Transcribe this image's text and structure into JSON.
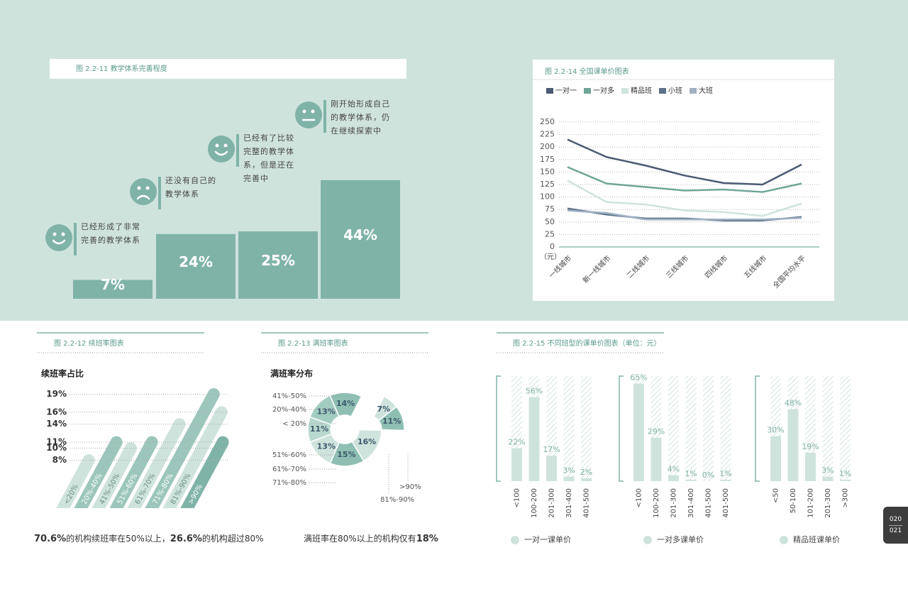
{
  "chart_data": [
    {
      "type": "step-bar",
      "title": "图 2.2-11 教学体系完善程度",
      "categories": [
        "已经形成了非常完善的教学体系",
        "还没有自己的教学体系",
        "已经有了比较完整的教学体系，但是还在完善中",
        "刚开始形成自己的教学体系，仍在继续探索中"
      ],
      "values": [
        7,
        24,
        25,
        44
      ],
      "value_labels": [
        "7%",
        "24%",
        "25%",
        "44%"
      ],
      "color": "#80b3a8"
    },
    {
      "type": "line",
      "title": "图 2.2-14 全国课单价图表",
      "categories": [
        "一线城市",
        "新一线城市",
        "二线城市",
        "三线城市",
        "四线城市",
        "五线城市",
        "全国平均水平"
      ],
      "series": [
        {
          "name": "一对一",
          "color": "#4b5a72",
          "values": [
            215,
            180,
            163,
            143,
            128,
            125,
            165
          ]
        },
        {
          "name": "一对多",
          "color": "#6fa597",
          "values": [
            160,
            127,
            120,
            113,
            115,
            110,
            127
          ]
        },
        {
          "name": "精品班",
          "color": "#cfe3dc",
          "values": [
            133,
            90,
            85,
            73,
            70,
            62,
            87
          ]
        },
        {
          "name": "小班",
          "color": "#5b7189",
          "values": [
            77,
            65,
            57,
            57,
            53,
            53,
            60
          ]
        },
        {
          "name": "大班",
          "color": "#9fb0c2",
          "values": [
            73,
            68,
            55,
            55,
            55,
            55,
            58
          ]
        }
      ],
      "ylabel": "（元）",
      "ylim": [
        0,
        250
      ],
      "yticks": [
        0,
        25,
        50,
        75,
        100,
        125,
        150,
        175,
        200,
        225,
        250
      ],
      "grid": true
    },
    {
      "type": "diagonal-bar",
      "title": "图 2.2-12 续班率图表",
      "subtitle": "续班率占比",
      "categories": [
        "<20%",
        "20%-40%",
        "41%-50%",
        "51%-60%",
        "61%-70%",
        "71%-80%",
        "81%-90%",
        ">90%"
      ],
      "values": [
        8,
        11,
        10,
        11,
        14,
        19,
        16,
        11
      ],
      "colors": [
        "#cfe3dd",
        "#9cc6bb",
        "#cfe3dd",
        "#9cc6bb",
        "#cfe3dd",
        "#9cc6bb",
        "#cfe3dd",
        "#80b3a8"
      ],
      "ylim": [
        0,
        20
      ],
      "yticks": [
        {
          "value": 19,
          "label": "19%"
        },
        {
          "value": 16,
          "label": "16%"
        },
        {
          "value": 14,
          "label": "14%"
        },
        {
          "value": 11,
          "label": "11%"
        },
        {
          "value": 10,
          "label": "10%"
        },
        {
          "value": 8,
          "label": "8%"
        }
      ],
      "note": [
        {
          "text": "70.6%",
          "bold": true
        },
        {
          "text": "的机构续班率在50%以上，",
          "bold": false
        },
        {
          "text": "26.6%",
          "bold": true
        },
        {
          "text": "的机构超过80%",
          "bold": false
        }
      ]
    },
    {
      "type": "donut",
      "title": "图 2.2-13 满班率图表",
      "subtitle": "满班率分布",
      "categories": [
        "< 20%",
        "20%-40%",
        "41%-50%",
        ">90%",
        "81%-90%",
        "71%-80%",
        "61%-70%",
        "51%-60%"
      ],
      "values": [
        11,
        13,
        14,
        7,
        11,
        16,
        15,
        13
      ],
      "value_labels": [
        "11%",
        "13%",
        "14%",
        "7%",
        "11%",
        "16%",
        "15%",
        "13%"
      ],
      "colors": [
        "#b9d8cf",
        "#a3ccc1",
        "#8fbfb3",
        "#cfe3dd",
        "#8fbfb3",
        "#cfe3dd",
        "#8fbfb3",
        "#cfe3dd"
      ],
      "note": [
        {
          "text": "满班率在80%以上的机构仅有",
          "bold": false
        },
        {
          "text": "18%",
          "bold": true
        }
      ]
    },
    {
      "type": "bar-panels",
      "title": "图 2.2-15 不同班型的课单价图表（单位：元）",
      "color": "#cfe3dd",
      "ylim": [
        0,
        70
      ],
      "panels": [
        {
          "name": "一对一课单价",
          "categories": [
            "<100",
            "100-200",
            "201-300",
            "301-400",
            "401-500"
          ],
          "values": [
            22,
            56,
            17,
            3,
            2
          ],
          "value_labels": [
            "22%",
            "56%",
            "17%",
            "3%",
            "2%"
          ]
        },
        {
          "name": "一对多课单价",
          "categories": [
            "<100",
            "100-200",
            "201-300",
            "301-400",
            "401-500",
            "401-500"
          ],
          "values": [
            65,
            29,
            4,
            1,
            0,
            1
          ],
          "value_labels": [
            "65%",
            "29%",
            "4%",
            "1%",
            "0%",
            "1%"
          ]
        },
        {
          "name": "精品班课单价",
          "categories": [
            "<50",
            "50-100",
            "101-200",
            "201-300",
            ">300"
          ],
          "values": [
            30,
            48,
            19,
            3,
            1
          ],
          "value_labels": [
            "30%",
            "48%",
            "19%",
            "3%",
            "1%"
          ]
        }
      ]
    }
  ],
  "page_numbers": [
    "020",
    "021"
  ]
}
